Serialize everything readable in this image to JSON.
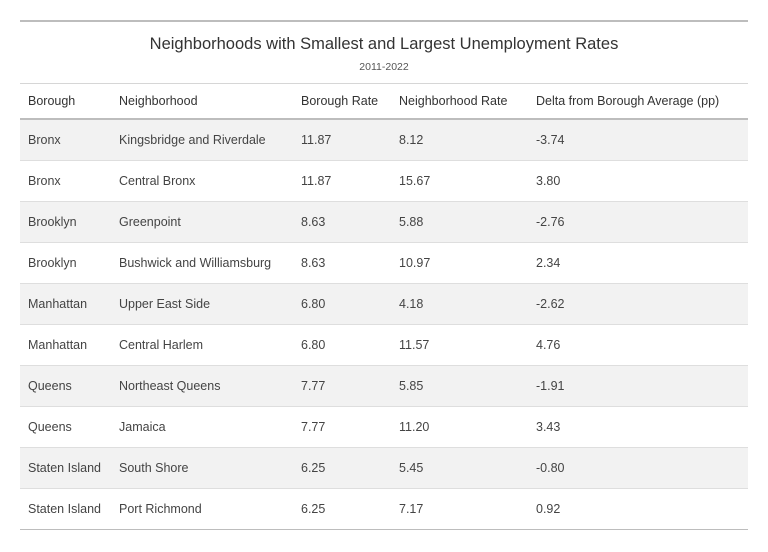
{
  "table": {
    "title": "Neighborhoods with Smallest and Largest Unemployment Rates",
    "subtitle": "2011-2022",
    "columns": [
      "Borough",
      "Neighborhood",
      "Borough Rate",
      "Neighborhood Rate",
      "Delta from Borough Average (pp)"
    ],
    "rows": [
      [
        "Bronx",
        "Kingsbridge and Riverdale",
        "11.87",
        "8.12",
        "-3.74"
      ],
      [
        "Bronx",
        "Central Bronx",
        "11.87",
        "15.67",
        "3.80"
      ],
      [
        "Brooklyn",
        "Greenpoint",
        "8.63",
        "5.88",
        "-2.76"
      ],
      [
        "Brooklyn",
        "Bushwick and Williamsburg",
        "8.63",
        "10.97",
        "2.34"
      ],
      [
        "Manhattan",
        "Upper East Side",
        "6.80",
        "4.18",
        "-2.62"
      ],
      [
        "Manhattan",
        "Central Harlem",
        "6.80",
        "11.57",
        "4.76"
      ],
      [
        "Queens",
        "Northeast Queens",
        "7.77",
        "5.85",
        "-1.91"
      ],
      [
        "Queens",
        "Jamaica",
        "7.77",
        "11.20",
        "3.43"
      ],
      [
        "Staten Island",
        "South Shore",
        "6.25",
        "5.45",
        "-0.80"
      ],
      [
        "Staten Island",
        "Port Richmond",
        "6.25",
        "7.17",
        "0.92"
      ]
    ]
  }
}
